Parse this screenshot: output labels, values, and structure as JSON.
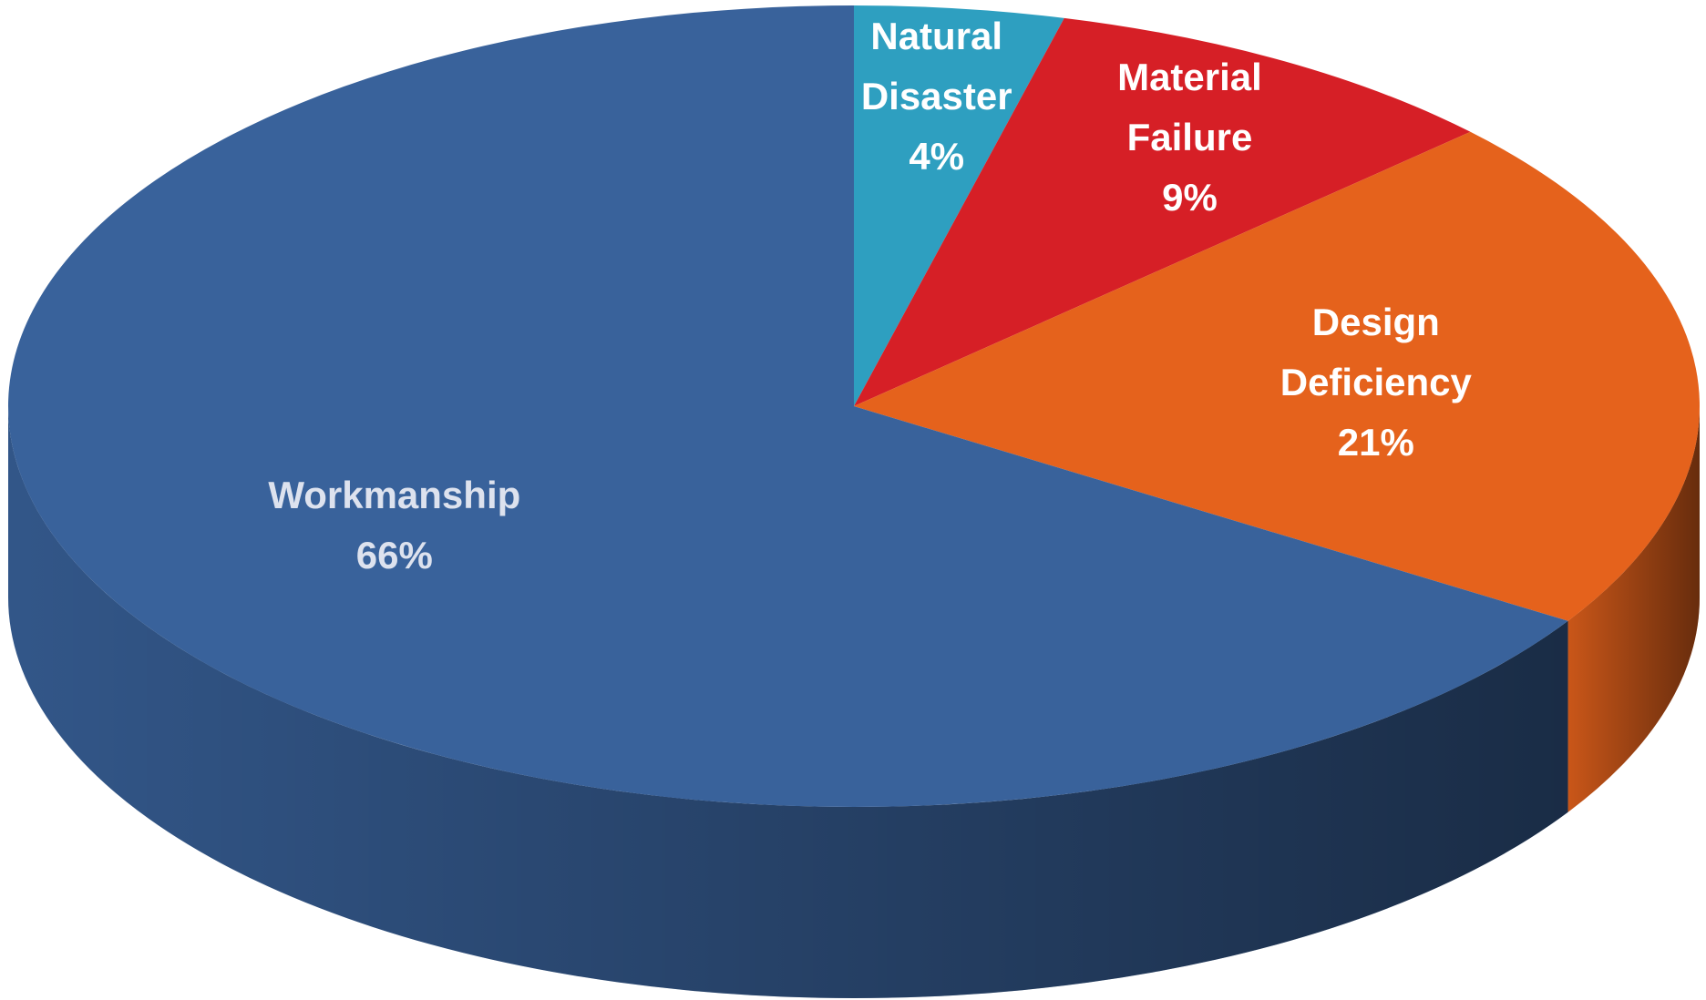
{
  "chart_data": {
    "type": "pie",
    "categories": [
      "Natural Disaster",
      "Material Failure",
      "Design Deficiency",
      "Workmanship"
    ],
    "values": [
      4,
      9,
      21,
      66
    ],
    "value_labels": [
      "4%",
      "9%",
      "21%",
      "66%"
    ],
    "colors": [
      "#2e9fc0",
      "#d61f26",
      "#e5621c",
      "#39629b"
    ],
    "label_colors": [
      "#ffffff",
      "#ffffff",
      "#ffffff",
      "#dde2ee"
    ]
  }
}
